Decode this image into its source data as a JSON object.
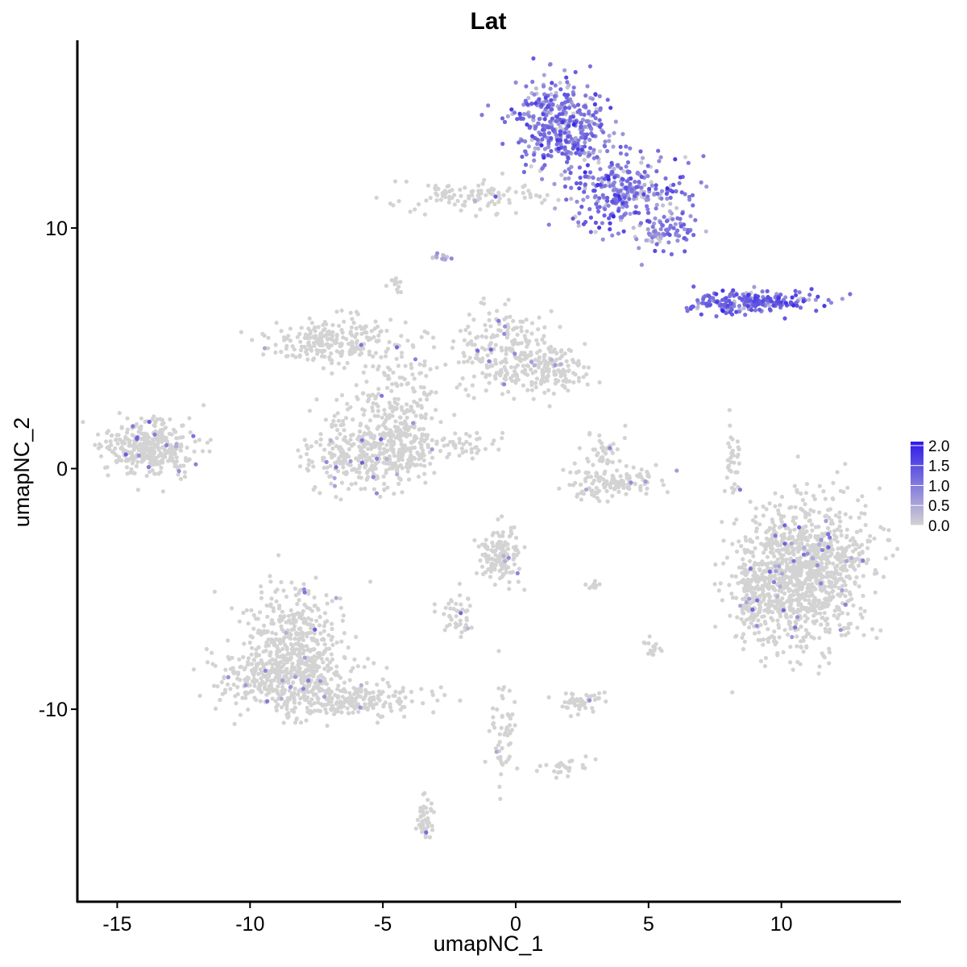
{
  "chart_data": {
    "type": "scatter",
    "title": "Lat",
    "xlabel": "umapNC_1",
    "ylabel": "umapNC_2",
    "xlim": [
      -16.5,
      14.5
    ],
    "ylim": [
      -18.0,
      17.8
    ],
    "x_ticks": [
      -15,
      -10,
      -5,
      0,
      5,
      10
    ],
    "x_tick_labels": [
      "-15",
      "-10",
      "-5",
      "0",
      "5",
      "10"
    ],
    "y_ticks": [
      -10,
      0,
      10
    ],
    "y_tick_labels": [
      "-10",
      "0",
      "10"
    ],
    "grid": false,
    "color_scale": {
      "low": "#d3d3d3",
      "high": "#2d1be8",
      "min": 0.0,
      "max": 2.0
    },
    "legend": {
      "position": "right",
      "breaks": [
        2.0,
        1.5,
        1.0,
        0.5,
        0.0
      ],
      "labels": [
        "2.0",
        "1.5",
        "1.0",
        "0.5",
        "0.0"
      ]
    },
    "clusters": [
      {
        "label": "high-expression-top-main",
        "cx": 1.7,
        "cy": 14.3,
        "sx": 0.85,
        "sy": 0.95,
        "n": 420,
        "expr_mean": 0.95,
        "expr_sd": 0.35
      },
      {
        "label": "high-expression-top-arm",
        "cx": 4.1,
        "cy": 11.5,
        "sx": 1.15,
        "sy": 0.8,
        "n": 300,
        "expr_mean": 0.95,
        "expr_sd": 0.35
      },
      {
        "label": "high-expression-top-right",
        "cx": 5.6,
        "cy": 9.8,
        "sx": 0.5,
        "sy": 0.45,
        "n": 80,
        "expr_mean": 0.85,
        "expr_sd": 0.3
      },
      {
        "label": "top-tail-grey",
        "cx": -1.6,
        "cy": 11.3,
        "sx": 1.3,
        "sy": 0.35,
        "n": 110,
        "expr_mean": 0.05,
        "expr_sd": 0.2
      },
      {
        "label": "high-expression-right-band",
        "cx": 8.8,
        "cy": 6.9,
        "sx": 1.2,
        "sy": 0.25,
        "n": 220,
        "expr_mean": 1.15,
        "expr_sd": 0.3
      },
      {
        "label": "small-top-cluster",
        "cx": -2.8,
        "cy": 8.8,
        "sx": 0.15,
        "sy": 0.12,
        "n": 14,
        "expr_mean": 0.4,
        "expr_sd": 0.3
      },
      {
        "label": "small-cluster-left-upper",
        "cx": -4.5,
        "cy": 7.5,
        "sx": 0.12,
        "sy": 0.2,
        "n": 12,
        "expr_mean": 0.1,
        "expr_sd": 0.2
      },
      {
        "label": "left-island",
        "cx": -13.8,
        "cy": 0.9,
        "sx": 0.85,
        "sy": 0.55,
        "n": 360,
        "expr_mean": 0.02,
        "expr_sd": 0.15
      },
      {
        "label": "center-y-upper-left",
        "cx": -7.0,
        "cy": 5.3,
        "sx": 1.2,
        "sy": 0.5,
        "n": 220,
        "expr_mean": 0.0,
        "expr_sd": 0.12
      },
      {
        "label": "center-y-upper-right",
        "cx": -0.6,
        "cy": 5.0,
        "sx": 0.9,
        "sy": 0.9,
        "n": 200,
        "expr_mean": 0.0,
        "expr_sd": 0.12
      },
      {
        "label": "center-y-right-lobe",
        "cx": 1.2,
        "cy": 4.2,
        "sx": 0.7,
        "sy": 0.45,
        "n": 160,
        "expr_mean": 0.0,
        "expr_sd": 0.12
      },
      {
        "label": "center-y-stem",
        "cx": -4.3,
        "cy": 3.0,
        "sx": 0.9,
        "sy": 1.0,
        "n": 150,
        "expr_mean": 0.0,
        "expr_sd": 0.12
      },
      {
        "label": "center-y-bottom-blob",
        "cx": -5.8,
        "cy": 0.7,
        "sx": 1.0,
        "sy": 0.85,
        "n": 300,
        "expr_mean": 0.02,
        "expr_sd": 0.12
      },
      {
        "label": "center-y-bottom-blob-right",
        "cx": -4.1,
        "cy": 0.9,
        "sx": 0.55,
        "sy": 0.7,
        "n": 150,
        "expr_mean": 0.02,
        "expr_sd": 0.12
      },
      {
        "label": "diagonal-strand",
        "cx": -1.8,
        "cy": 1.0,
        "sx": 0.55,
        "sy": 0.25,
        "n": 40,
        "expr_mean": 0.0,
        "expr_sd": 0.1
      },
      {
        "label": "arc-cluster",
        "cx": 3.6,
        "cy": -0.6,
        "sx": 0.9,
        "sy": 0.35,
        "n": 130,
        "expr_mean": 0.0,
        "expr_sd": 0.1
      },
      {
        "label": "arc-cluster-top",
        "cx": 3.3,
        "cy": 0.7,
        "sx": 0.35,
        "sy": 0.4,
        "n": 40,
        "expr_mean": 0.0,
        "expr_sd": 0.1
      },
      {
        "label": "thin-vertical-strand",
        "cx": 8.2,
        "cy": 0.2,
        "sx": 0.15,
        "sy": 0.9,
        "n": 35,
        "expr_mean": 0.05,
        "expr_sd": 0.15
      },
      {
        "label": "large-right-cluster",
        "cx": 10.8,
        "cy": -4.3,
        "sx": 1.25,
        "sy": 1.45,
        "n": 1100,
        "expr_mean": 0.03,
        "expr_sd": 0.15
      },
      {
        "label": "large-right-cluster-left",
        "cx": 9.0,
        "cy": -5.4,
        "sx": 0.45,
        "sy": 0.9,
        "n": 150,
        "expr_mean": 0.03,
        "expr_sd": 0.15
      },
      {
        "label": "middle-small-cluster",
        "cx": -0.6,
        "cy": -3.6,
        "sx": 0.45,
        "sy": 0.55,
        "n": 140,
        "expr_mean": 0.05,
        "expr_sd": 0.2
      },
      {
        "label": "middle-thread",
        "cx": -2.2,
        "cy": -6.1,
        "sx": 0.35,
        "sy": 0.55,
        "n": 45,
        "expr_mean": 0.0,
        "expr_sd": 0.1
      },
      {
        "label": "bottom-left-big-top",
        "cx": -8.4,
        "cy": -6.8,
        "sx": 0.9,
        "sy": 1.0,
        "n": 300,
        "expr_mean": 0.02,
        "expr_sd": 0.12
      },
      {
        "label": "bottom-left-big",
        "cx": -8.6,
        "cy": -8.8,
        "sx": 1.2,
        "sy": 0.75,
        "n": 450,
        "expr_mean": 0.02,
        "expr_sd": 0.12
      },
      {
        "label": "bottom-left-tail",
        "cx": -5.6,
        "cy": -9.6,
        "sx": 1.2,
        "sy": 0.35,
        "n": 170,
        "expr_mean": 0.02,
        "expr_sd": 0.12
      },
      {
        "label": "bottom-mid-strand",
        "cx": -0.5,
        "cy": -11.0,
        "sx": 0.25,
        "sy": 1.0,
        "n": 55,
        "expr_mean": 0.0,
        "expr_sd": 0.1
      },
      {
        "label": "bottom-mid-small",
        "cx": 2.4,
        "cy": -9.7,
        "sx": 0.45,
        "sy": 0.25,
        "n": 50,
        "expr_mean": 0.05,
        "expr_sd": 0.2
      },
      {
        "label": "bottom-right-strand",
        "cx": 1.8,
        "cy": -12.4,
        "sx": 0.45,
        "sy": 0.2,
        "n": 25,
        "expr_mean": 0.0,
        "expr_sd": 0.1
      },
      {
        "label": "bottom-cluster",
        "cx": -3.4,
        "cy": -14.6,
        "sx": 0.18,
        "sy": 0.45,
        "n": 45,
        "expr_mean": 0.0,
        "expr_sd": 0.1
      },
      {
        "label": "small-right-cluster",
        "cx": 5.1,
        "cy": -7.4,
        "sx": 0.15,
        "sy": 0.22,
        "n": 15,
        "expr_mean": 0.1,
        "expr_sd": 0.2
      },
      {
        "label": "small-cluster-near-middle",
        "cx": 2.9,
        "cy": -4.9,
        "sx": 0.18,
        "sy": 0.1,
        "n": 10,
        "expr_mean": 0.2,
        "expr_sd": 0.3
      }
    ]
  }
}
